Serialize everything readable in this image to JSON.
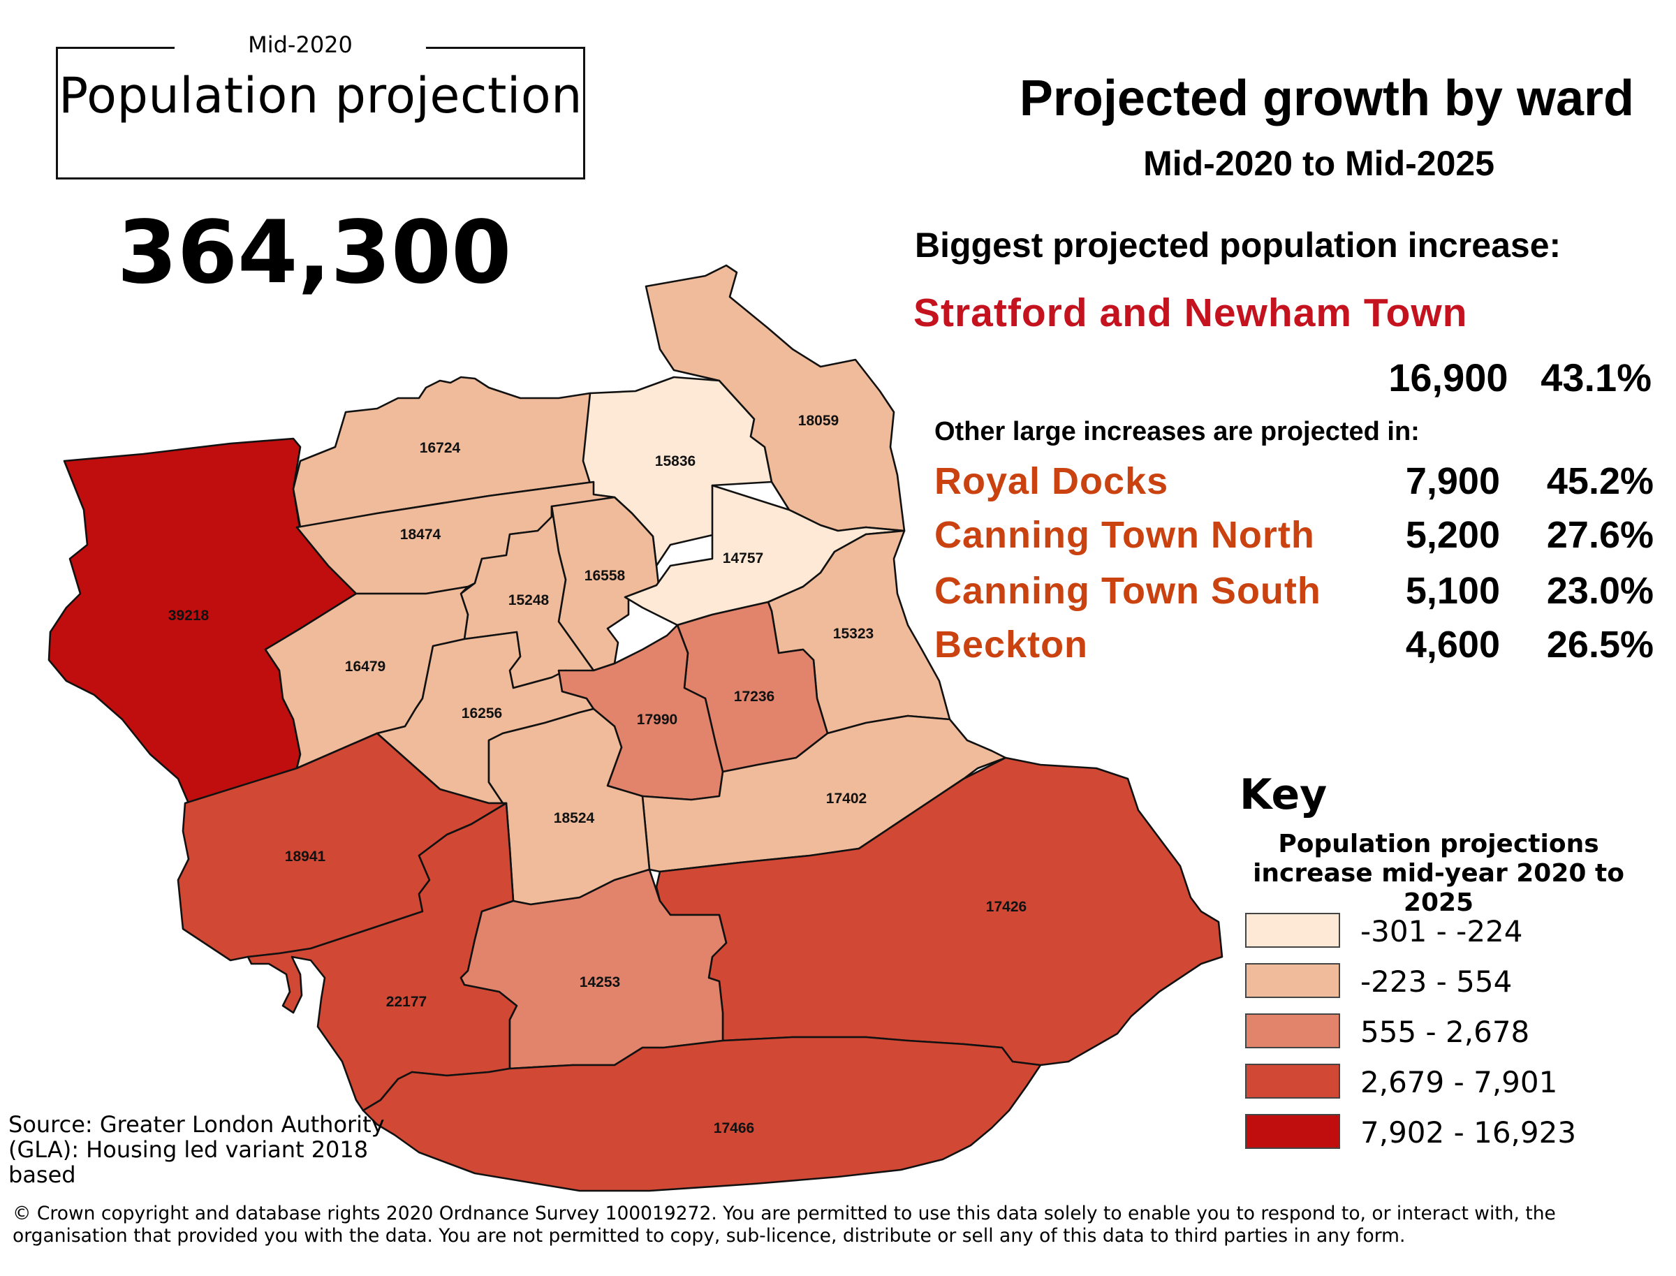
{
  "header": {
    "superscript": "Mid-2020",
    "title": "Population projection",
    "total_population": "364,300"
  },
  "summary": {
    "title": "Projected growth by ward",
    "subtitle": "Mid-2020 to Mid-2025",
    "biggest_label": "Biggest projected population increase:",
    "biggest_ward": "Stratford and Newham Town",
    "biggest_increase": "16,900",
    "biggest_pct": "43.1%",
    "other_label": "Other large increases are projected in:",
    "other_increases": [
      {
        "ward": "Royal Docks",
        "increase": "7,900",
        "pct": "45.2%"
      },
      {
        "ward": "Canning Town North",
        "increase": "5,200",
        "pct": "27.6%"
      },
      {
        "ward": "Canning Town South",
        "increase": "5,100",
        "pct": "23.0%"
      },
      {
        "ward": "Beckton",
        "increase": "4,600",
        "pct": "26.5%"
      }
    ]
  },
  "key": {
    "title": "Key",
    "subtitle": "Population projections increase mid-year 2020 to 2025",
    "classes": [
      {
        "label": "-301  -  -224",
        "color": "#fde9d6"
      },
      {
        "label": "-223  -  554",
        "color": "#f0bb9b"
      },
      {
        "label": "555 - 2,678",
        "color": "#e2836b"
      },
      {
        "label": "2,679 - 7,901",
        "color": "#d14835"
      },
      {
        "label": "7,902 - 16,923",
        "color": "#c00e0e"
      }
    ]
  },
  "map": {
    "wards": [
      {
        "label": "39218",
        "class": 4
      },
      {
        "label": "16724",
        "class": 1
      },
      {
        "label": "15836",
        "class": 0
      },
      {
        "label": "18059",
        "class": 1
      },
      {
        "label": "18474",
        "class": 1
      },
      {
        "label": "16558",
        "class": 1
      },
      {
        "label": "14757",
        "class": 0
      },
      {
        "label": "15248",
        "class": 1
      },
      {
        "label": "16479",
        "class": 1
      },
      {
        "label": "16256",
        "class": 1
      },
      {
        "label": "15323",
        "class": 1
      },
      {
        "label": "17236",
        "class": 2
      },
      {
        "label": "17990",
        "class": 2
      },
      {
        "label": "17402",
        "class": 1
      },
      {
        "label": "18524",
        "class": 1
      },
      {
        "label": "18941",
        "class": 3
      },
      {
        "label": "17426",
        "class": 3
      },
      {
        "label": "22177",
        "class": 3
      },
      {
        "label": "14253",
        "class": 2
      },
      {
        "label": "17466",
        "class": 3
      }
    ]
  },
  "source": "Source: Greater London Authority (GLA): Housing led variant 2018 based",
  "copyright": "© Crown copyright and database rights 2020 Ordnance Survey 100019272. You are permitted to use this data solely to enable you to respond to, or interact with, the organisation that provided you with the data. You are not permitted to copy, sub-licence, distribute or sell any of this data to third parties in any form."
}
